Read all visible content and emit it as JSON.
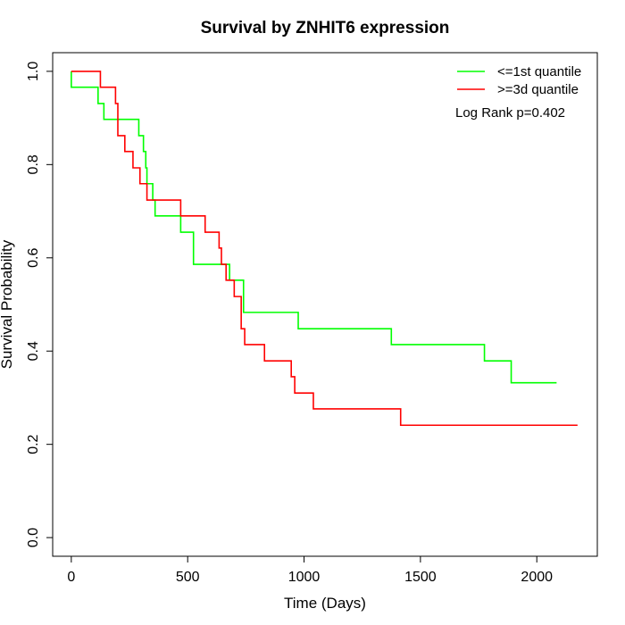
{
  "chart_data": {
    "type": "line",
    "title": "Survival by ZNHIT6 expression",
    "xlabel": "Time (Days)",
    "ylabel": "Survival Probability",
    "xlim": [
      -80,
      2260
    ],
    "ylim": [
      -0.04,
      1.04
    ],
    "x_ticks": [
      0,
      500,
      1000,
      1500,
      2000
    ],
    "y_ticks": [
      0.0,
      0.2,
      0.4,
      0.6,
      0.8,
      1.0
    ],
    "x_tick_labels": [
      "0",
      "500",
      "1000",
      "1500",
      "2000"
    ],
    "y_tick_labels": [
      "0.0",
      "0.2",
      "0.4",
      "0.6",
      "0.8",
      "1.0"
    ],
    "legend_position": "top-right",
    "annotation": "Log Rank p=0.402",
    "grid": false,
    "series": [
      {
        "name": "<=1st quantile",
        "color": "#00ff00",
        "x": [
          0,
          0,
          115,
          140,
          290,
          310,
          320,
          325,
          350,
          360,
          370,
          470,
          525,
          680,
          740,
          975,
          1375,
          1775,
          1890,
          2085
        ],
        "y": [
          1.0,
          0.966,
          0.931,
          0.897,
          0.862,
          0.828,
          0.793,
          0.759,
          0.724,
          0.69,
          0.69,
          0.655,
          0.586,
          0.552,
          0.483,
          0.448,
          0.414,
          0.379,
          0.332,
          0.332
        ]
      },
      {
        "name": ">=3d quantile",
        "color": "#ff0000",
        "x": [
          0,
          125,
          190,
          200,
          230,
          265,
          295,
          325,
          470,
          575,
          635,
          645,
          665,
          700,
          730,
          745,
          830,
          945,
          960,
          1040,
          1415,
          2175
        ],
        "y": [
          1.0,
          0.966,
          0.931,
          0.862,
          0.828,
          0.793,
          0.759,
          0.724,
          0.69,
          0.655,
          0.621,
          0.586,
          0.552,
          0.517,
          0.448,
          0.414,
          0.379,
          0.345,
          0.31,
          0.276,
          0.241,
          0.241
        ]
      }
    ]
  }
}
